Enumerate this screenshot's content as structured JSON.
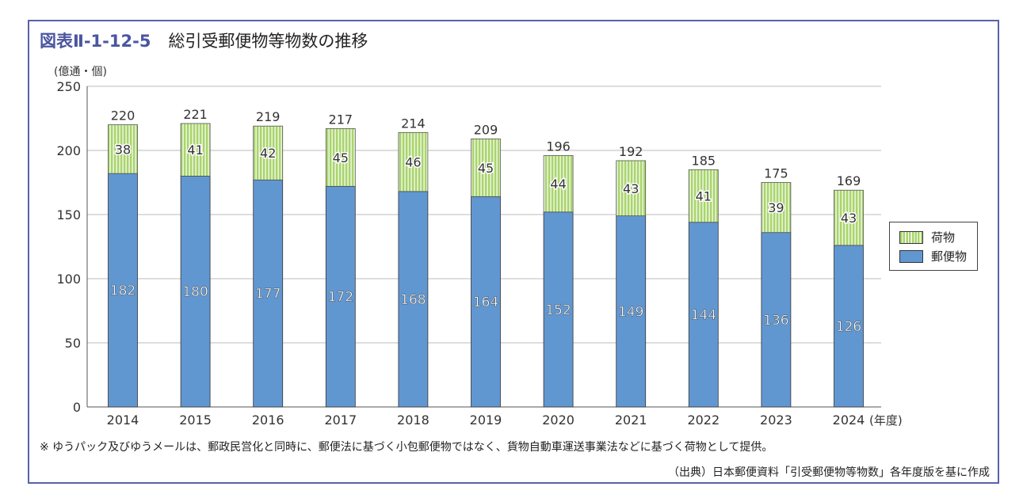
{
  "header": {
    "figure_no": "図表Ⅱ-1-12-5",
    "title": "総引受郵便物等物数の推移"
  },
  "chart_data": {
    "type": "bar",
    "stacked": true,
    "title": "総引受郵便物等物数の推移",
    "ylabel": "(億通・個)",
    "xlabel_suffix": "(年度)",
    "ylim": [
      0,
      250
    ],
    "yticks": [
      0,
      50,
      100,
      150,
      200,
      250
    ],
    "grid": true,
    "legend_position": "right",
    "categories": [
      "2014",
      "2015",
      "2016",
      "2017",
      "2018",
      "2019",
      "2020",
      "2021",
      "2022",
      "2023",
      "2024"
    ],
    "series": [
      {
        "name": "郵便物",
        "color": "#6197d1",
        "values": [
          182,
          180,
          177,
          172,
          168,
          164,
          152,
          149,
          144,
          136,
          126
        ]
      },
      {
        "name": "荷物",
        "color": "#a9d46c",
        "values": [
          38,
          41,
          42,
          45,
          46,
          45,
          44,
          43,
          41,
          39,
          43
        ]
      }
    ],
    "totals": [
      220,
      221,
      219,
      217,
      214,
      209,
      196,
      192,
      185,
      175,
      169
    ]
  },
  "footer": {
    "note": "※ ゆうパック及びゆうメールは、郵政民営化と同時に、郵便法に基づく小包郵便物ではなく、貨物自動車運送事業法などに基づく荷物として提供。",
    "source": "（出典）日本郵便資料「引受郵便物等物数」各年度版を基に作成"
  }
}
